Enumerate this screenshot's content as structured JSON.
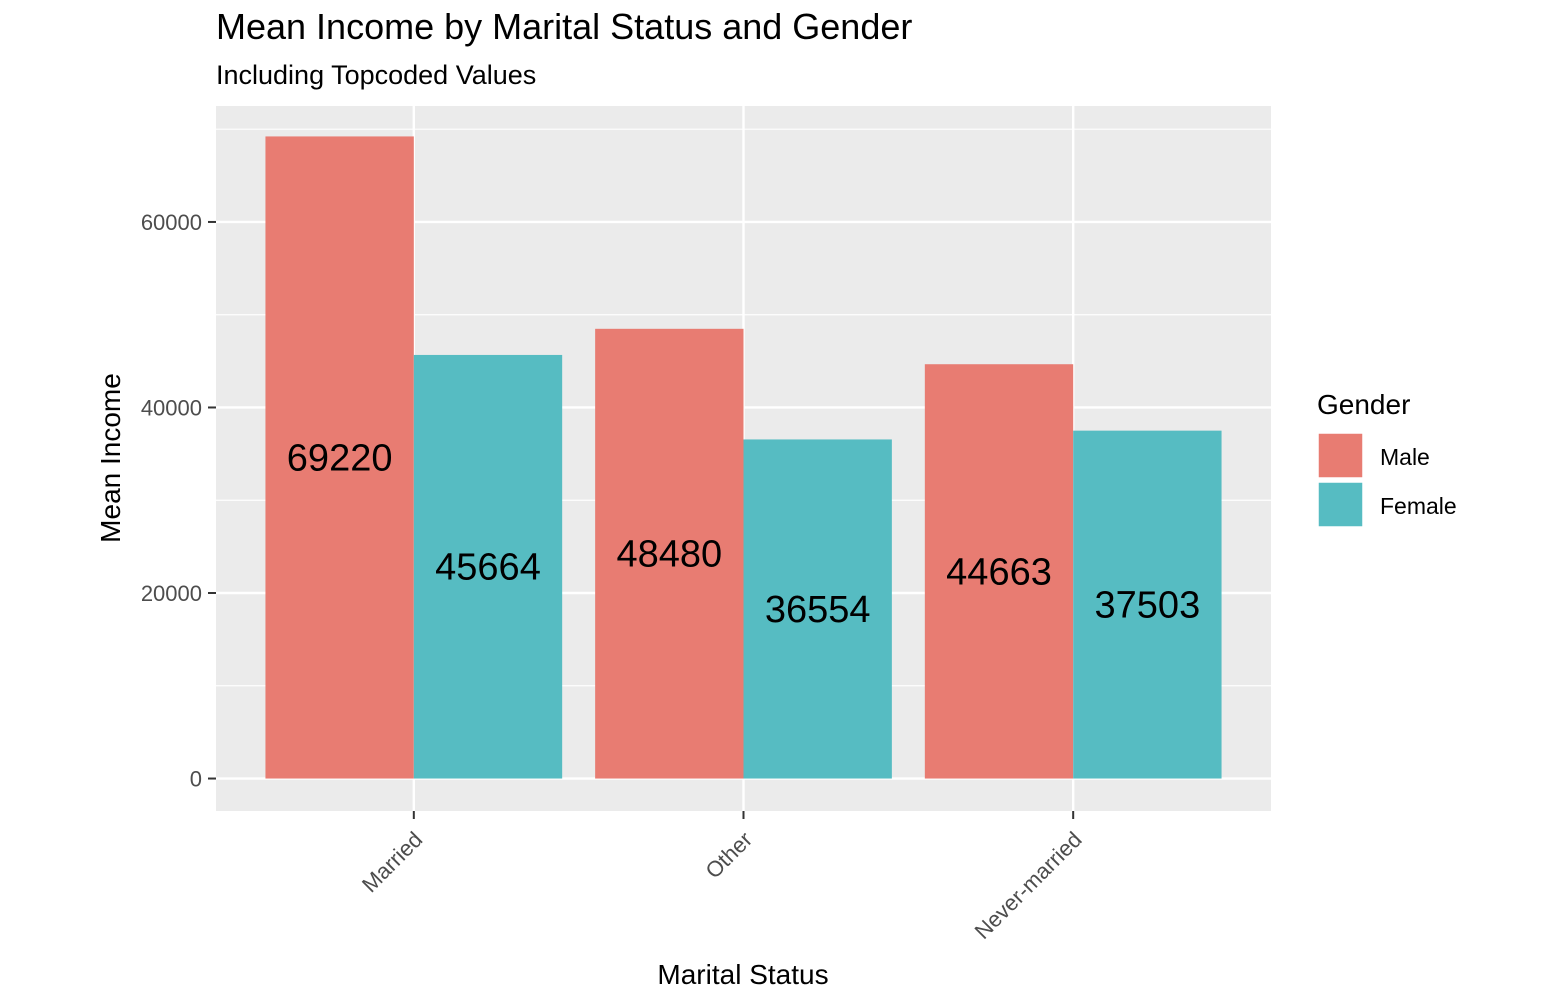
{
  "chart_data": {
    "type": "bar",
    "title": "Mean Income by Marital Status and Gender",
    "subtitle": "Including Topcoded Values",
    "xlabel": "Marital Status",
    "ylabel": "Mean Income",
    "categories": [
      "Married",
      "Other",
      "Never-married"
    ],
    "series": [
      {
        "name": "Male",
        "values": [
          69220,
          48480,
          44663
        ],
        "color": "#E87C72"
      },
      {
        "name": "Female",
        "values": [
          45664,
          36554,
          37503
        ],
        "color": "#56BCC2"
      }
    ],
    "yticks": [
      0,
      20000,
      40000,
      60000
    ],
    "ylim": [
      -3500,
      72500
    ],
    "grid": true,
    "legend": {
      "title": "Gender",
      "position": "right"
    },
    "x_tick_label_rotation": -45
  }
}
